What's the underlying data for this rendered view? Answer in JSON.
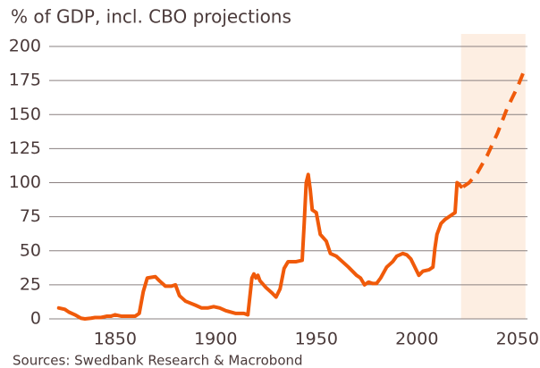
{
  "chart_data": {
    "type": "line",
    "subtitle": "% of GDP, incl. CBO projections",
    "source": "Sources: Swedbank Research & Macrobond",
    "xlim": [
      1819,
      2055
    ],
    "xticks": [
      1850,
      1900,
      1950,
      2000,
      2050
    ],
    "ylim": [
      0,
      200
    ],
    "yticks": [
      0,
      25,
      50,
      75,
      100,
      125,
      150,
      175,
      200
    ],
    "grid": true,
    "projection_span": [
      2022,
      2054
    ],
    "projection_color": "#fdeee2",
    "series": [
      {
        "color": "#f05a0a",
        "dash": false,
        "x": [
          1822,
          1825,
          1827,
          1830,
          1833,
          1835,
          1838,
          1840,
          1843,
          1846,
          1848,
          1850,
          1853,
          1856,
          1860,
          1862,
          1864,
          1866,
          1870,
          1872,
          1875,
          1878,
          1880,
          1882,
          1885,
          1890,
          1893,
          1896,
          1899,
          1902,
          1905,
          1910,
          1914,
          1916,
          1918,
          1919,
          1920,
          1921,
          1922,
          1925,
          1928,
          1930,
          1932,
          1934,
          1936,
          1940,
          1943,
          1944,
          1945,
          1946,
          1947,
          1948,
          1950,
          1952,
          1955,
          1957,
          1960,
          1963,
          1966,
          1970,
          1972,
          1974,
          1976,
          1978,
          1980,
          1982,
          1985,
          1988,
          1990,
          1993,
          1995,
          1997,
          2000,
          2001,
          2003,
          2006,
          2008,
          2009,
          2010,
          2012,
          2014,
          2016,
          2018,
          2019,
          2020,
          2021,
          2022
        ],
        "values": [
          8,
          7,
          5,
          3,
          0.5,
          0,
          0.5,
          1,
          1,
          2,
          2,
          3,
          2,
          2,
          2,
          4,
          20,
          30,
          31,
          28,
          24,
          24,
          25,
          17,
          13,
          10,
          8,
          8,
          9,
          8,
          6,
          4,
          4,
          3,
          30,
          33,
          30,
          32,
          28,
          23,
          19,
          16,
          22,
          37,
          42,
          42,
          43,
          70,
          100,
          106,
          95,
          80,
          78,
          62,
          57,
          48,
          46,
          42,
          38,
          32,
          30,
          25,
          27,
          26,
          26,
          30,
          38,
          42,
          46,
          48,
          47,
          44,
          35,
          32,
          35,
          36,
          38,
          52,
          62,
          70,
          73,
          75,
          77,
          78,
          100,
          99,
          97
        ]
      },
      {
        "color": "#f05a0a",
        "dash": true,
        "x": [
          2023,
          2026,
          2030,
          2035,
          2040,
          2045,
          2050,
          2053
        ],
        "values": [
          97,
          100,
          107,
          120,
          136,
          155,
          170,
          181
        ]
      }
    ]
  }
}
